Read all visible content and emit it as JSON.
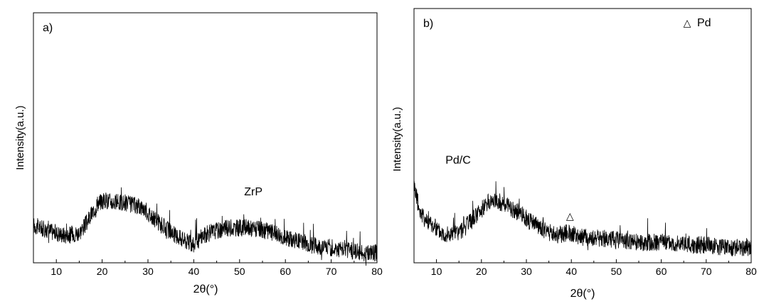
{
  "chart_data": [
    {
      "type": "line",
      "panel_label": "a)",
      "xlabel": "2θ(°)",
      "ylabel": "Intensity(a.u.)",
      "xlim": [
        5,
        80
      ],
      "ylim": [
        0,
        100
      ],
      "xticks": [
        10,
        20,
        30,
        40,
        50,
        60,
        70,
        80
      ],
      "annotations": [
        {
          "text": "ZrP",
          "x": 53,
          "y": 27
        }
      ],
      "series": [
        {
          "x": [
            5,
            8,
            12,
            15,
            17,
            19,
            21,
            23,
            25,
            27,
            29,
            31,
            33,
            36,
            38,
            40,
            42,
            45,
            48,
            52,
            55,
            58,
            60,
            63,
            66,
            70,
            74,
            77,
            80
          ],
          "values": [
            15,
            13,
            11,
            12,
            17,
            24,
            25,
            24,
            24,
            23,
            22,
            18,
            15,
            11,
            9,
            7,
            11,
            13,
            14,
            14,
            13,
            12,
            10,
            9,
            7,
            6,
            5,
            4,
            4
          ]
        }
      ]
    },
    {
      "type": "line",
      "panel_label": "b)",
      "xlabel": "2θ(°)",
      "ylabel": "Intensity(a.u.)",
      "xlim": [
        5,
        80
      ],
      "ylim": [
        0,
        100
      ],
      "xticks": [
        10,
        20,
        30,
        40,
        50,
        60,
        70,
        80
      ],
      "legend": {
        "marker": "△",
        "label": "Pd",
        "position": "top-right"
      },
      "annotations": [
        {
          "text": "Pd/C",
          "x": 12,
          "y": 39
        }
      ],
      "peak_markers": [
        {
          "symbol": "△",
          "x": 39.7,
          "y": 17
        }
      ],
      "series": [
        {
          "x": [
            5,
            6,
            7,
            9,
            11,
            13,
            15,
            17,
            19,
            21,
            23,
            25,
            27,
            29,
            31,
            33,
            35,
            37,
            39.5,
            42,
            45,
            50,
            55,
            60,
            65,
            70,
            75,
            80
          ],
          "values": [
            31,
            22,
            18,
            15,
            12,
            11,
            12,
            15,
            19,
            23,
            25,
            23,
            21,
            19,
            16,
            14,
            12,
            11,
            12,
            10,
            10,
            9,
            8,
            8,
            7,
            7,
            6,
            6
          ]
        }
      ]
    }
  ]
}
